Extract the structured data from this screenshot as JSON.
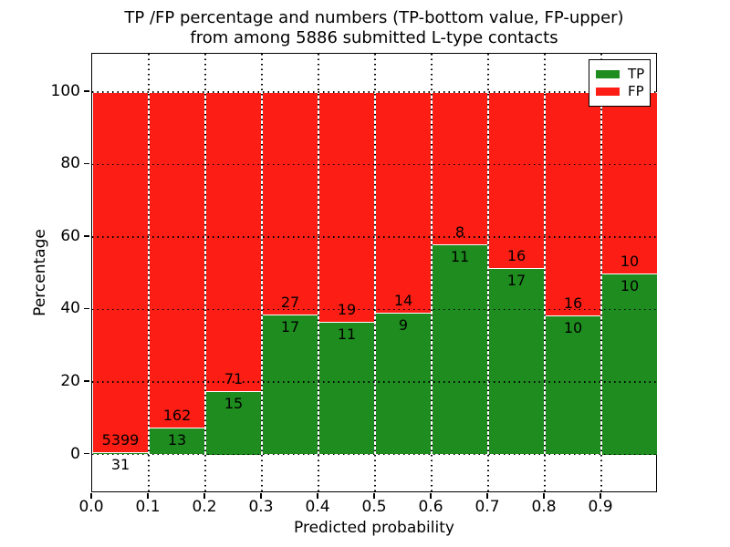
{
  "title": {
    "line1": "TP /FP percentage and numbers (TP-bottom value, FP-upper)",
    "line2": "from among 5886 submitted L-type contacts"
  },
  "axes": {
    "xlabel": "Predicted probability",
    "ylabel": "Percentage",
    "xtick_labels": [
      "0.0",
      "0.1",
      "0.2",
      "0.3",
      "0.4",
      "0.5",
      "0.6",
      "0.7",
      "0.8",
      "0.9"
    ],
    "ytick_labels": [
      "0",
      "20",
      "40",
      "60",
      "80",
      "100"
    ],
    "ytick_values": [
      0,
      20,
      40,
      60,
      80,
      100
    ],
    "grid": "dotted"
  },
  "legend": {
    "position": "upper-right",
    "entries": [
      {
        "label": "TP",
        "color": "#1e8c1e"
      },
      {
        "label": "FP",
        "color": "#fc1e14"
      }
    ]
  },
  "colors": {
    "tp_green": "#1e8c1e",
    "fp_red": "#fc1e14",
    "bar_edge": "#ffffff",
    "text": "#000000",
    "background": "#ffffff"
  },
  "chart_data": {
    "type": "bar",
    "stacked": true,
    "normalized_to_percent": true,
    "title": "TP /FP percentage and numbers (TP-bottom value, FP-upper) from among 5886 submitted L-type contacts",
    "xlabel": "Predicted probability",
    "ylabel": "Percentage",
    "bin_width": 0.1,
    "bin_starts": [
      0.0,
      0.1,
      0.2,
      0.3,
      0.4,
      0.5,
      0.6,
      0.7,
      0.8,
      0.9
    ],
    "series": [
      {
        "name": "TP",
        "color": "#1e8c1e",
        "counts": [
          31,
          13,
          15,
          17,
          11,
          9,
          11,
          17,
          10,
          10
        ]
      },
      {
        "name": "FP",
        "color": "#fc1e14",
        "counts": [
          5399,
          162,
          71,
          27,
          19,
          14,
          8,
          16,
          16,
          10
        ]
      }
    ],
    "total_contacts": 5886,
    "ylim": [
      0,
      100
    ],
    "xlim": [
      0.0,
      1.0
    ],
    "annotation_rule": "FP count printed above TP/FP boundary, TP count printed below boundary, per bar"
  }
}
